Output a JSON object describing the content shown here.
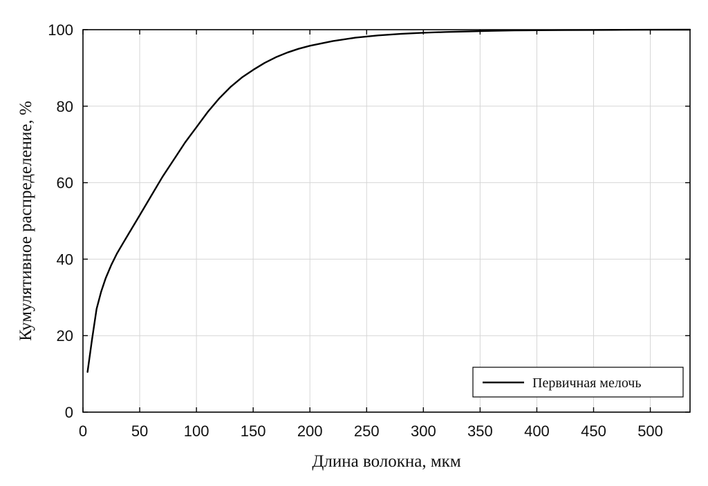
{
  "chart_data": {
    "type": "line",
    "title": "",
    "xlabel": "Длина волокна, мкм",
    "ylabel": "Кумулятивное распределение, %",
    "xlim": [
      0,
      535
    ],
    "ylim": [
      0,
      100
    ],
    "xticks": [
      0,
      50,
      100,
      150,
      200,
      250,
      300,
      350,
      400,
      450,
      500
    ],
    "yticks": [
      0,
      20,
      40,
      60,
      80,
      100
    ],
    "grid": true,
    "legend_position": "bottom-right",
    "series": [
      {
        "name": "Первичная мелочь",
        "color": "#000000",
        "x": [
          4,
          8,
          12,
          16,
          20,
          25,
          30,
          35,
          40,
          45,
          50,
          60,
          70,
          80,
          90,
          100,
          110,
          120,
          130,
          140,
          150,
          160,
          170,
          180,
          190,
          200,
          220,
          240,
          260,
          280,
          300,
          320,
          340,
          360,
          380,
          400,
          425,
          450,
          475,
          500,
          535
        ],
        "y": [
          10.5,
          19,
          27,
          31.5,
          35,
          38.5,
          41.5,
          44,
          46.5,
          49,
          51.5,
          56.5,
          61.5,
          66,
          70.5,
          74.5,
          78.5,
          82,
          85,
          87.5,
          89.5,
          91.3,
          92.8,
          94,
          95,
          95.8,
          97,
          97.9,
          98.5,
          98.9,
          99.2,
          99.4,
          99.55,
          99.7,
          99.8,
          99.85,
          99.9,
          99.93,
          99.96,
          99.98,
          100
        ]
      }
    ]
  }
}
